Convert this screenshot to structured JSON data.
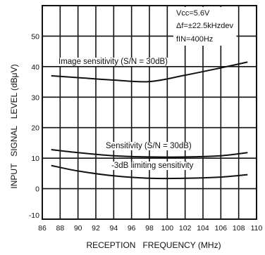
{
  "chart_data": {
    "type": "line",
    "xlabel": "RECEPTION   FREQUENCY (MHz)",
    "ylabel": "INPUT   SIGNAL   LEVEL (dBμV)",
    "xlim": [
      86,
      110
    ],
    "ylim": [
      -10,
      60
    ],
    "x_ticks": [
      86,
      88,
      90,
      92,
      94,
      96,
      98,
      100,
      102,
      104,
      106,
      108,
      110
    ],
    "y_ticks": [
      -10,
      0,
      10,
      20,
      30,
      40,
      50
    ],
    "grid": true,
    "conditions": [
      "Vcc=5.6V",
      "Δf=±22.5kHzdev",
      "fIN=400Hz"
    ],
    "series": [
      {
        "name": "Image sensitivity (S/N = 30dB)",
        "x": [
          87,
          90,
          94,
          98,
          102,
          106,
          109
        ],
        "y": [
          37,
          36.4,
          35.6,
          35.1,
          37.2,
          39.6,
          41.5
        ]
      },
      {
        "name": "Sensitivity (S/N = 30dB)",
        "x": [
          87,
          90,
          94,
          98,
          102,
          106,
          109
        ],
        "y": [
          12.8,
          11.8,
          10.8,
          10.4,
          10.4,
          10.8,
          11.8
        ]
      },
      {
        "name": "-3dB limiting sensitivity",
        "x": [
          87,
          90,
          94,
          98,
          102,
          106,
          109
        ],
        "y": [
          7.6,
          5.8,
          4.2,
          3.4,
          3.4,
          3.8,
          4.6
        ]
      }
    ]
  }
}
